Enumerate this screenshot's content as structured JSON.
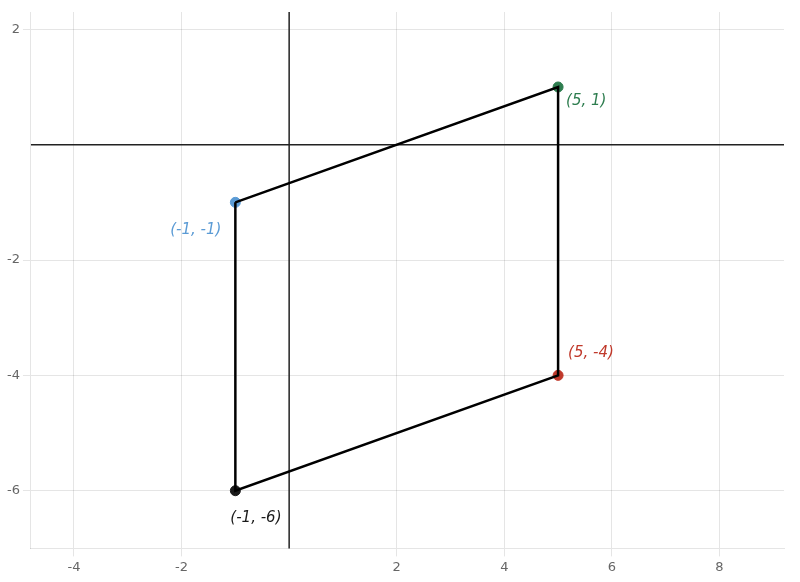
{
  "chart_data": {
    "type": "polygon",
    "x": [
      -1,
      5,
      5,
      -1
    ],
    "values": [
      -1,
      1,
      -4,
      -6
    ],
    "colors": [
      "#5b9bd5",
      "#2e7d4f",
      "#c0392b",
      "#1a1a1a"
    ],
    "color": "#000000",
    "annotations": [
      "(-1, -1)",
      "(5, 1)",
      "(5, -4)",
      "(-1, -6)"
    ],
    "xlim": [
      -4.8,
      9.2
    ],
    "ylim": [
      -7.0,
      2.3
    ],
    "xticks": [
      -4,
      -2,
      2,
      4,
      6,
      8
    ],
    "yticks": [
      -6,
      -4,
      -2,
      2
    ],
    "grid": true
  }
}
